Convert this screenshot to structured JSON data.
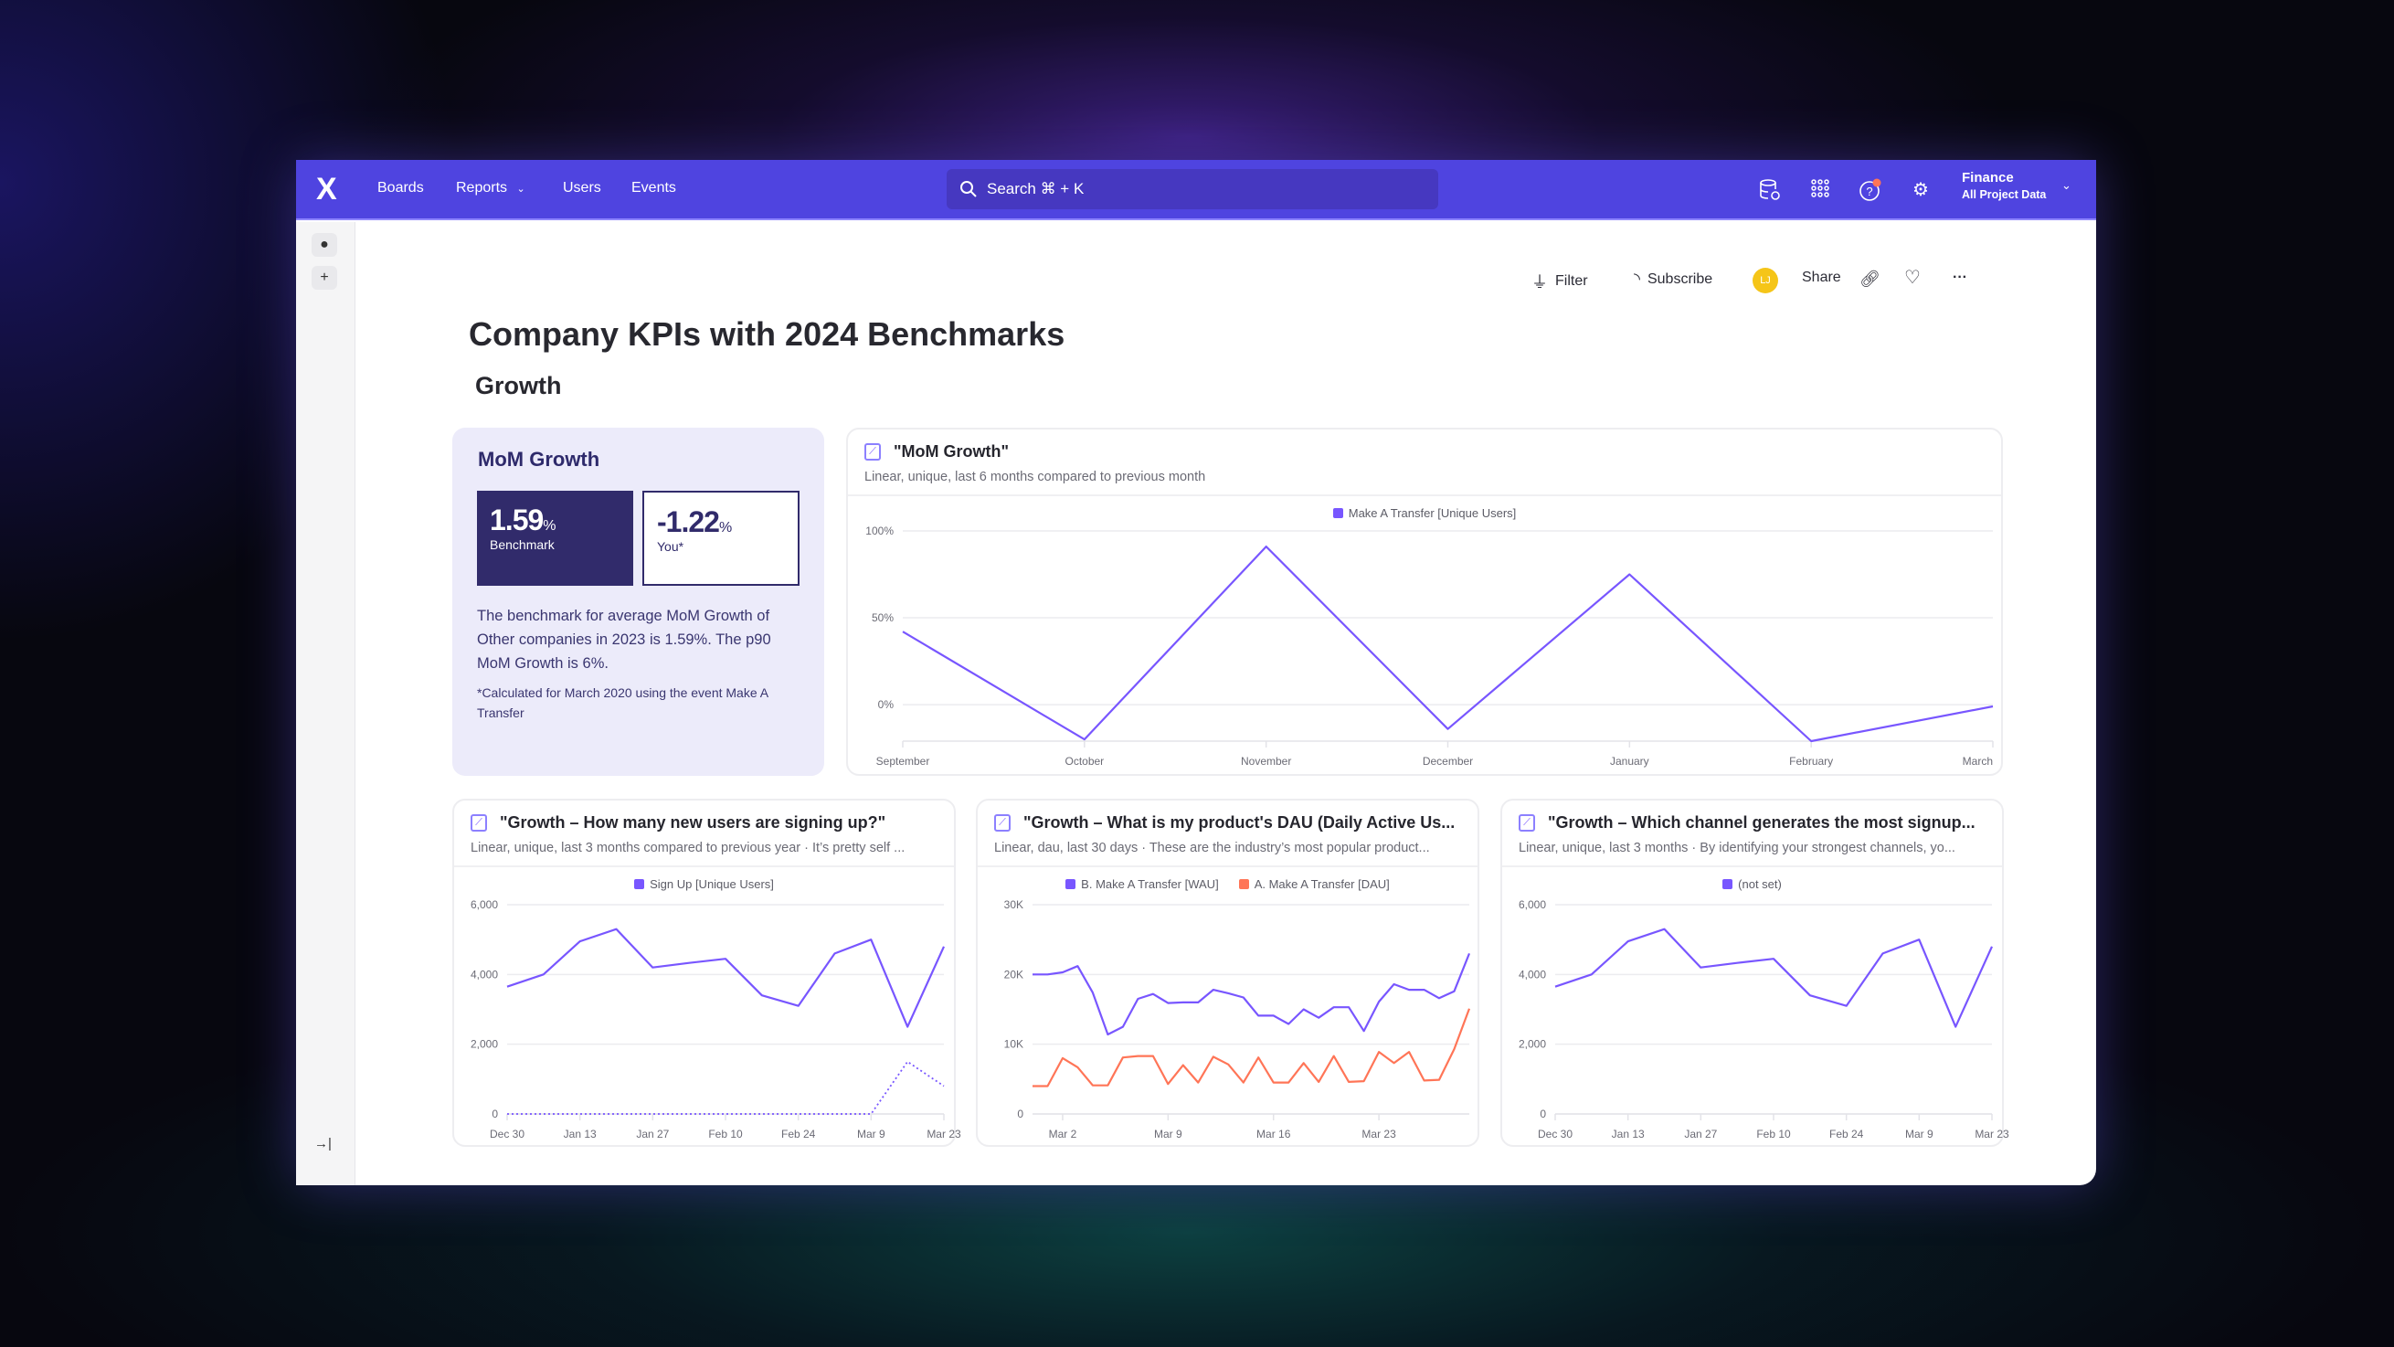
{
  "nav": {
    "logo": "X",
    "boards": "Boards",
    "reports": "Reports",
    "users": "Users",
    "events": "Events",
    "search_placeholder": "Search  ⌘ + K",
    "project_name": "Finance",
    "project_scope": "All Project Data"
  },
  "toolbar": {
    "filter": "Filter",
    "subscribe": "Subscribe",
    "avatar_initials": "LJ",
    "share": "Share"
  },
  "page": {
    "title": "Company KPIs with 2024 Benchmarks",
    "section": "Growth"
  },
  "mom_card": {
    "title": "MoM Growth",
    "benchmark_value": "1.59",
    "benchmark_unit": "%",
    "benchmark_label": "Benchmark",
    "you_value": "-1.22",
    "you_unit": "%",
    "you_label": "You*",
    "description": "The benchmark for average MoM Growth of Other companies in 2023 is 1.59%. The p90 MoM Growth is 6%.",
    "footnote": "*Calculated for March 2020 using the event Make A Transfer"
  },
  "colors": {
    "header": "#4f44e0",
    "accent": "#7856ff",
    "secondary": "#ff7557",
    "benchmark_box": "#312b6b",
    "card_bg": "#ecebfa"
  },
  "chart_data": [
    {
      "type": "line",
      "title": "\"MoM Growth\"",
      "subtitle": "Linear, unique, last 6 months compared to previous month",
      "x": [
        "September",
        "October",
        "November",
        "December",
        "January",
        "February",
        "March"
      ],
      "xticks": [
        "September",
        "October",
        "November",
        "December",
        "January",
        "February",
        "March"
      ],
      "yticks": [
        "100%",
        "50%",
        "0%"
      ],
      "ytick_values": [
        100,
        50,
        0
      ],
      "ylim": [
        -21,
        100
      ],
      "grid": true,
      "legend": "top-center",
      "series": [
        {
          "name": "Make A Transfer [Unique Users]",
          "color": "#7856ff",
          "values": [
            42,
            -20,
            91,
            -14,
            75,
            -21,
            -1
          ]
        }
      ]
    },
    {
      "type": "line",
      "title": "\"Growth – How many new users are signing up?\"",
      "subtitle": "Linear, unique, last 3 months compared to previous year · It’s pretty self ...",
      "x": [
        "Dec 30",
        "Jan 6",
        "Jan 13",
        "Jan 20",
        "Jan 27",
        "Feb 3",
        "Feb 10",
        "Feb 17",
        "Feb 24",
        "Mar 2",
        "Mar 9",
        "Mar 16",
        "Mar 23"
      ],
      "xticks": [
        "Dec 30",
        "Jan 13",
        "Jan 27",
        "Feb 10",
        "Feb 24",
        "Mar 9",
        "Mar 23"
      ],
      "yticks": [
        "6,000",
        "4,000",
        "2,000",
        "0"
      ],
      "ytick_values": [
        6000,
        4000,
        2000,
        0
      ],
      "ylim": [
        0,
        6000
      ],
      "grid": true,
      "legend": "top-center",
      "series": [
        {
          "name": "Sign Up [Unique Users]",
          "color": "#7856ff",
          "values": [
            3650,
            4000,
            4950,
            5300,
            4200,
            4330,
            4450,
            3400,
            3100,
            4600,
            5000,
            2500,
            4800
          ]
        },
        {
          "color": "#7856ff",
          "style": "dotted",
          "values": [
            0,
            0,
            0,
            0,
            0,
            0,
            0,
            0,
            0,
            0,
            0,
            1500,
            800
          ]
        }
      ]
    },
    {
      "type": "line",
      "title": "\"Growth – What is my product's DAU (Daily Active Us...",
      "subtitle": "Linear, dau, last 30 days · These are the industry’s most popular product...",
      "x": [
        "Feb 28",
        "Mar 1",
        "Mar 2",
        "Mar 3",
        "Mar 4",
        "Mar 5",
        "Mar 6",
        "Mar 7",
        "Mar 8",
        "Mar 9",
        "Mar 10",
        "Mar 11",
        "Mar 12",
        "Mar 13",
        "Mar 14",
        "Mar 15",
        "Mar 16",
        "Mar 17",
        "Mar 18",
        "Mar 19",
        "Mar 20",
        "Mar 21",
        "Mar 22",
        "Mar 23",
        "Mar 24",
        "Mar 25",
        "Mar 26",
        "Mar 27",
        "Mar 28",
        "Mar 29"
      ],
      "xticks": [
        "Mar 2",
        "Mar 9",
        "Mar 16",
        "Mar 23"
      ],
      "yticks": [
        "30K",
        "20K",
        "10K",
        "0"
      ],
      "ytick_values": [
        30000,
        20000,
        10000,
        0
      ],
      "ylim": [
        0,
        30000
      ],
      "grid": true,
      "legend": "top-center",
      "series": [
        {
          "name": "B. Make A Transfer [WAU]",
          "color": "#7856ff",
          "values": [
            20000,
            20000,
            20300,
            21200,
            17400,
            11400,
            12500,
            16500,
            17200,
            15900,
            16000,
            16000,
            17800,
            17300,
            16700,
            14100,
            14100,
            12900,
            15000,
            13800,
            15300,
            15300,
            11900,
            16100,
            18600,
            17800,
            17800,
            16600,
            17600,
            23000
          ]
        },
        {
          "name": "A. Make A Transfer [DAU]",
          "color": "#ff7557",
          "values": [
            4000,
            4000,
            8000,
            6700,
            4100,
            4100,
            8100,
            8300,
            8300,
            4300,
            7000,
            4500,
            8200,
            7100,
            4500,
            8100,
            4500,
            4500,
            7300,
            4600,
            8300,
            4600,
            4700,
            8900,
            7300,
            8900,
            4800,
            4900,
            9300,
            15100
          ]
        }
      ]
    },
    {
      "type": "line",
      "title": "\"Growth – Which channel generates the most signup...",
      "subtitle": "Linear, unique, last 3 months · By identifying your strongest channels, yo...",
      "x": [
        "Dec 30",
        "Jan 6",
        "Jan 13",
        "Jan 20",
        "Jan 27",
        "Feb 3",
        "Feb 10",
        "Feb 17",
        "Feb 24",
        "Mar 2",
        "Mar 9",
        "Mar 16",
        "Mar 23"
      ],
      "xticks": [
        "Dec 30",
        "Jan 13",
        "Jan 27",
        "Feb 10",
        "Feb 24",
        "Mar 9",
        "Mar 23"
      ],
      "yticks": [
        "6,000",
        "4,000",
        "2,000",
        "0"
      ],
      "ytick_values": [
        6000,
        4000,
        2000,
        0
      ],
      "ylim": [
        0,
        6000
      ],
      "grid": true,
      "legend": "top-center",
      "series": [
        {
          "name": "(not set)",
          "color": "#7856ff",
          "values": [
            3650,
            4000,
            4950,
            5300,
            4200,
            4330,
            4450,
            3400,
            3100,
            4600,
            5000,
            2500,
            4800
          ]
        }
      ]
    }
  ]
}
